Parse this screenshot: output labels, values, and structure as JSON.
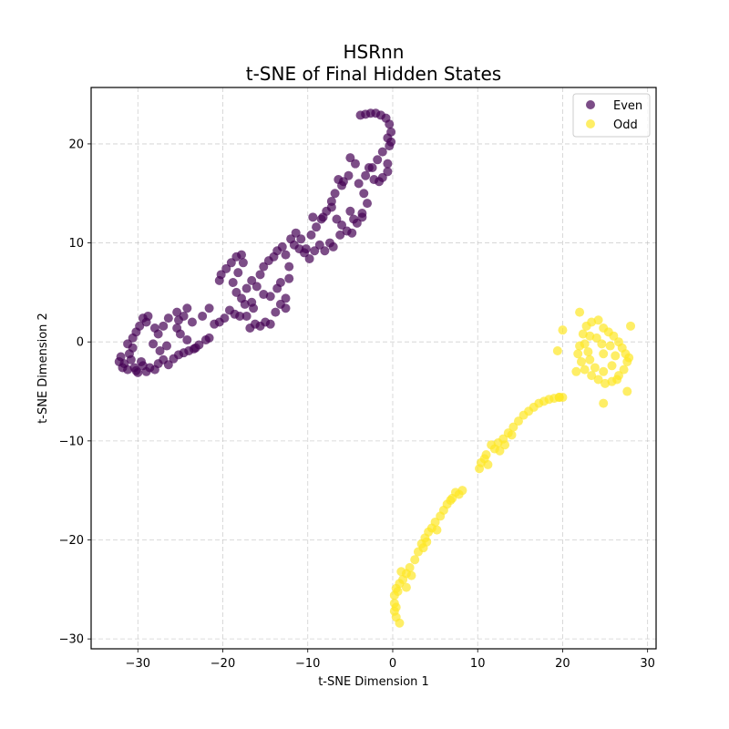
{
  "chart_data": {
    "type": "scatter",
    "title": "HSRnn\nt-SNE of Final Hidden States",
    "title_lines": [
      "HSRnn",
      "t-SNE of Final Hidden States"
    ],
    "xlabel": "t-SNE Dimension 1",
    "ylabel": "t-SNE Dimension 2",
    "xlim": [
      -35.5,
      31.0
    ],
    "ylim": [
      -31.0,
      25.7
    ],
    "xticks": [
      -30,
      -20,
      -10,
      0,
      10,
      20,
      30
    ],
    "yticks": [
      -30,
      -20,
      -10,
      0,
      10,
      20
    ],
    "xtick_labels": [
      "−30",
      "−20",
      "−10",
      "0",
      "10",
      "20",
      "30"
    ],
    "ytick_labels": [
      "−30",
      "−20",
      "−10",
      "0",
      "10",
      "20"
    ],
    "grid": true,
    "legend_position": "upper right",
    "series": [
      {
        "name": "Even",
        "color": "#440154",
        "alpha": 0.7,
        "points": [
          [
            -32.0,
            -1.5
          ],
          [
            -31.6,
            -2.2
          ],
          [
            -31.2,
            -2.8
          ],
          [
            -30.8,
            -1.8
          ],
          [
            -30.4,
            -2.6
          ],
          [
            -30.0,
            -3.1
          ],
          [
            -29.6,
            -2.0
          ],
          [
            -31.8,
            -2.6
          ],
          [
            -32.2,
            -2.0
          ],
          [
            -31.0,
            -1.2
          ],
          [
            -30.6,
            -0.6
          ],
          [
            -30.2,
            -2.9
          ],
          [
            -29.4,
            -2.4
          ],
          [
            -29.0,
            -3.0
          ],
          [
            -28.6,
            -2.6
          ],
          [
            -28.0,
            -2.8
          ],
          [
            -27.6,
            -2.2
          ],
          [
            -27.0,
            -1.8
          ],
          [
            -26.4,
            -2.3
          ],
          [
            -25.8,
            -1.7
          ],
          [
            -25.2,
            -1.3
          ],
          [
            -24.6,
            -1.1
          ],
          [
            -24.0,
            -0.9
          ],
          [
            -23.4,
            -0.7
          ],
          [
            -22.8,
            -0.3
          ],
          [
            -22.0,
            0.2
          ],
          [
            -24.2,
            0.2
          ],
          [
            -25.0,
            0.8
          ],
          [
            -25.4,
            1.4
          ],
          [
            -25.2,
            2.2
          ],
          [
            -24.6,
            2.6
          ],
          [
            -25.4,
            3.0
          ],
          [
            -24.2,
            3.4
          ],
          [
            -26.4,
            2.4
          ],
          [
            -27.0,
            1.6
          ],
          [
            -27.6,
            0.8
          ],
          [
            -28.2,
            -0.2
          ],
          [
            -29.0,
            2.0
          ],
          [
            -29.4,
            2.4
          ],
          [
            -28.8,
            2.6
          ],
          [
            -29.8,
            1.6
          ],
          [
            -30.2,
            1.0
          ],
          [
            -30.6,
            0.4
          ],
          [
            -31.2,
            -0.2
          ],
          [
            -28.0,
            1.4
          ],
          [
            -26.6,
            -0.4
          ],
          [
            -27.4,
            -0.9
          ],
          [
            -23.6,
            2.0
          ],
          [
            -22.4,
            2.6
          ],
          [
            -21.6,
            3.4
          ],
          [
            -21.0,
            1.8
          ],
          [
            -20.4,
            2.0
          ],
          [
            -19.8,
            2.4
          ],
          [
            -19.2,
            3.2
          ],
          [
            -18.6,
            2.8
          ],
          [
            -18.0,
            2.6
          ],
          [
            -17.4,
            3.8
          ],
          [
            -16.8,
            1.4
          ],
          [
            -16.2,
            1.8
          ],
          [
            -15.6,
            1.6
          ],
          [
            -15.0,
            2.0
          ],
          [
            -14.4,
            1.8
          ],
          [
            -13.8,
            3.0
          ],
          [
            -13.2,
            3.8
          ],
          [
            -12.6,
            4.4
          ],
          [
            -12.6,
            3.4
          ],
          [
            -20.4,
            6.2
          ],
          [
            -20.2,
            6.8
          ],
          [
            -19.6,
            7.4
          ],
          [
            -19.0,
            8.0
          ],
          [
            -18.4,
            8.6
          ],
          [
            -17.8,
            8.8
          ],
          [
            -17.6,
            8.0
          ],
          [
            -18.2,
            7.0
          ],
          [
            -18.8,
            6.0
          ],
          [
            -18.4,
            5.0
          ],
          [
            -17.8,
            4.4
          ],
          [
            -17.2,
            5.4
          ],
          [
            -16.6,
            6.2
          ],
          [
            -16.0,
            5.6
          ],
          [
            -15.6,
            6.8
          ],
          [
            -15.2,
            7.6
          ],
          [
            -14.6,
            8.2
          ],
          [
            -14.0,
            8.6
          ],
          [
            -13.6,
            9.2
          ],
          [
            -13.0,
            9.6
          ],
          [
            -12.6,
            8.8
          ],
          [
            -12.2,
            7.6
          ],
          [
            -13.2,
            6.0
          ],
          [
            -13.6,
            5.4
          ],
          [
            -14.4,
            4.6
          ],
          [
            -15.2,
            4.8
          ],
          [
            -16.4,
            3.4
          ],
          [
            -11.6,
            9.8
          ],
          [
            -11.0,
            9.4
          ],
          [
            -10.4,
            9.0
          ],
          [
            -9.8,
            8.4
          ],
          [
            -9.2,
            9.2
          ],
          [
            -8.6,
            9.8
          ],
          [
            -8.0,
            9.2
          ],
          [
            -7.4,
            10.0
          ],
          [
            -9.6,
            10.8
          ],
          [
            -9.0,
            11.6
          ],
          [
            -8.4,
            12.4
          ],
          [
            -7.8,
            13.2
          ],
          [
            -7.2,
            13.6
          ],
          [
            -6.6,
            12.4
          ],
          [
            -6.0,
            11.8
          ],
          [
            -5.4,
            11.2
          ],
          [
            -4.8,
            11.0
          ],
          [
            -4.2,
            12.0
          ],
          [
            -3.6,
            13.0
          ],
          [
            -3.0,
            14.0
          ],
          [
            -3.4,
            15.0
          ],
          [
            -4.0,
            16.0
          ],
          [
            -5.2,
            16.8
          ],
          [
            -6.0,
            15.8
          ],
          [
            -6.8,
            15.0
          ],
          [
            -7.2,
            14.2
          ],
          [
            -8.2,
            12.6
          ],
          [
            -10.2,
            9.4
          ],
          [
            -10.8,
            10.4
          ],
          [
            -11.4,
            11.0
          ],
          [
            -12.0,
            10.4
          ],
          [
            -3.2,
            16.8
          ],
          [
            -2.4,
            17.6
          ],
          [
            -1.8,
            18.4
          ],
          [
            -1.2,
            16.6
          ],
          [
            -0.6,
            18.0
          ],
          [
            -1.2,
            19.2
          ],
          [
            -0.4,
            19.8
          ],
          [
            -0.6,
            20.6
          ],
          [
            -0.2,
            21.2
          ],
          [
            -0.4,
            22.0
          ],
          [
            -0.8,
            22.6
          ],
          [
            -1.4,
            22.9
          ],
          [
            -2.0,
            23.1
          ],
          [
            -2.6,
            23.1
          ],
          [
            -3.2,
            23.0
          ],
          [
            -3.8,
            22.9
          ],
          [
            -0.2,
            20.2
          ],
          [
            -0.6,
            17.2
          ],
          [
            -1.6,
            16.2
          ],
          [
            -2.2,
            16.4
          ],
          [
            -2.8,
            17.6
          ],
          [
            -4.4,
            18.0
          ],
          [
            -5.0,
            18.6
          ],
          [
            -5.8,
            16.2
          ],
          [
            -6.4,
            16.4
          ],
          [
            -3.6,
            12.6
          ],
          [
            -4.6,
            12.4
          ],
          [
            -5.0,
            13.2
          ],
          [
            -6.2,
            10.8
          ],
          [
            -7.0,
            9.6
          ],
          [
            -9.4,
            12.6
          ],
          [
            -12.2,
            6.4
          ],
          [
            -16.6,
            4.0
          ],
          [
            -17.2,
            2.6
          ],
          [
            -21.6,
            0.4
          ],
          [
            -23.2,
            -0.6
          ]
        ]
      },
      {
        "name": "Odd",
        "color": "#fde725",
        "alpha": 0.7,
        "points": [
          [
            0.8,
            -28.4
          ],
          [
            0.4,
            -27.8
          ],
          [
            0.2,
            -27.2
          ],
          [
            0.2,
            -26.4
          ],
          [
            0.2,
            -25.6
          ],
          [
            0.4,
            -24.9
          ],
          [
            0.8,
            -24.4
          ],
          [
            1.2,
            -24.0
          ],
          [
            1.6,
            -23.4
          ],
          [
            2.0,
            -22.8
          ],
          [
            2.6,
            -22.0
          ],
          [
            3.0,
            -21.2
          ],
          [
            3.4,
            -20.4
          ],
          [
            3.8,
            -19.8
          ],
          [
            4.2,
            -19.2
          ],
          [
            4.6,
            -18.8
          ],
          [
            5.0,
            -18.2
          ],
          [
            5.6,
            -17.6
          ],
          [
            6.0,
            -17.0
          ],
          [
            6.4,
            -16.4
          ],
          [
            7.0,
            -15.8
          ],
          [
            7.4,
            -15.2
          ],
          [
            7.8,
            -15.4
          ],
          [
            6.8,
            -16.0
          ],
          [
            5.2,
            -19.0
          ],
          [
            3.6,
            -20.8
          ],
          [
            1.6,
            -24.8
          ],
          [
            0.6,
            -25.2
          ],
          [
            1.0,
            -23.2
          ],
          [
            2.2,
            -23.6
          ],
          [
            10.2,
            -12.8
          ],
          [
            10.4,
            -12.2
          ],
          [
            10.8,
            -11.8
          ],
          [
            11.2,
            -12.4
          ],
          [
            11.0,
            -11.4
          ],
          [
            11.6,
            -10.4
          ],
          [
            12.0,
            -10.8
          ],
          [
            12.4,
            -10.2
          ],
          [
            13.0,
            -9.8
          ],
          [
            13.6,
            -9.2
          ],
          [
            14.2,
            -8.6
          ],
          [
            14.8,
            -8.0
          ],
          [
            15.4,
            -7.4
          ],
          [
            16.0,
            -7.0
          ],
          [
            16.6,
            -6.6
          ],
          [
            17.2,
            -6.2
          ],
          [
            17.8,
            -6.0
          ],
          [
            18.4,
            -5.8
          ],
          [
            19.0,
            -5.7
          ],
          [
            19.6,
            -5.6
          ],
          [
            20.0,
            -5.6
          ],
          [
            13.2,
            -10.4
          ],
          [
            14.0,
            -9.4
          ],
          [
            12.6,
            -11.0
          ],
          [
            22.0,
            3.0
          ],
          [
            22.4,
            0.8
          ],
          [
            22.8,
            1.6
          ],
          [
            23.4,
            2.0
          ],
          [
            24.2,
            2.2
          ],
          [
            24.8,
            1.4
          ],
          [
            25.4,
            1.0
          ],
          [
            26.0,
            0.6
          ],
          [
            26.6,
            0.0
          ],
          [
            27.0,
            -0.6
          ],
          [
            27.4,
            -1.2
          ],
          [
            27.6,
            -2.0
          ],
          [
            27.2,
            -2.8
          ],
          [
            26.6,
            -3.4
          ],
          [
            25.8,
            -4.0
          ],
          [
            25.0,
            -4.2
          ],
          [
            24.2,
            -3.8
          ],
          [
            23.4,
            -3.4
          ],
          [
            22.6,
            -2.8
          ],
          [
            22.2,
            -2.0
          ],
          [
            21.8,
            -1.2
          ],
          [
            22.0,
            -0.4
          ],
          [
            22.6,
            -0.2
          ],
          [
            23.2,
            0.6
          ],
          [
            24.0,
            0.4
          ],
          [
            24.6,
            -0.2
          ],
          [
            25.6,
            -0.4
          ],
          [
            26.2,
            -1.4
          ],
          [
            25.8,
            -2.4
          ],
          [
            24.8,
            -3.0
          ],
          [
            23.8,
            -2.6
          ],
          [
            23.2,
            -1.8
          ],
          [
            23.0,
            -1.0
          ],
          [
            24.8,
            -1.2
          ],
          [
            28.0,
            1.6
          ],
          [
            27.6,
            -5.0
          ],
          [
            24.8,
            -6.2
          ],
          [
            19.4,
            -0.9
          ],
          [
            20.0,
            1.2
          ],
          [
            21.6,
            -3.0
          ],
          [
            26.4,
            -3.8
          ],
          [
            27.8,
            -1.6
          ],
          [
            19.6,
            -5.6
          ],
          [
            8.2,
            -15.0
          ],
          [
            4.0,
            -20.2
          ],
          [
            0.4,
            -26.8
          ]
        ]
      }
    ]
  }
}
